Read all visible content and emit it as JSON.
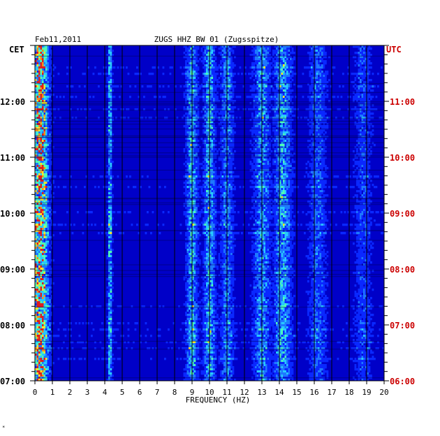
{
  "chart_data": {
    "type": "heatmap",
    "title": "ZUGS HHZ BW 01 (Zugsspitze)",
    "date": "Feb11,2011",
    "left_axis_label": "CET",
    "right_axis_label": "UTC",
    "xlabel": "FREQUENCY (HZ)",
    "xlim": [
      0,
      20
    ],
    "x_ticks": [
      "0",
      "1",
      "2",
      "3",
      "4",
      "5",
      "6",
      "7",
      "8",
      "9",
      "10",
      "11",
      "12",
      "13",
      "14",
      "15",
      "16",
      "17",
      "18",
      "19",
      "20"
    ],
    "y_ticks_cet": [
      "07:00",
      "08:00",
      "09:00",
      "10:00",
      "11:00",
      "12:00"
    ],
    "y_ticks_utc": [
      "06:00",
      "07:00",
      "08:00",
      "09:00",
      "10:00",
      "11:00"
    ],
    "time_range_cet_hours": [
      7.0,
      13.0
    ],
    "grid": true,
    "colors": {
      "background": "#0000c8",
      "cet_label": "#000000",
      "utc_label": "#cc0000",
      "grid": "#000000"
    },
    "energy_bands_hz": [
      {
        "center": 0.3,
        "width": 0.5,
        "level": 0.75
      },
      {
        "center": 4.3,
        "width": 0.12,
        "level": 0.5
      },
      {
        "center": 9.0,
        "width": 0.35,
        "level": 0.45
      },
      {
        "center": 10.0,
        "width": 0.35,
        "level": 0.45
      },
      {
        "center": 11.0,
        "width": 0.4,
        "level": 0.35
      },
      {
        "center": 13.0,
        "width": 0.5,
        "level": 0.4
      },
      {
        "center": 14.2,
        "width": 0.5,
        "level": 0.45
      },
      {
        "center": 16.2,
        "width": 0.5,
        "level": 0.3
      },
      {
        "center": 18.8,
        "width": 0.5,
        "level": 0.25
      }
    ]
  },
  "footer_mark": "*"
}
